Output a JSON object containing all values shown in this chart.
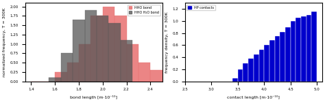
{
  "left": {
    "xlabel": "bond length [m·10⁻¹⁰]",
    "ylabel": "normalized frequency, T = 300K",
    "xlim": [
      1.35,
      2.5
    ],
    "ylim": [
      0,
      2.1
    ],
    "yticks": [
      0.0,
      0.25,
      0.5,
      0.75,
      1.0,
      1.25,
      1.5,
      1.75,
      2.0
    ],
    "xticks": [
      1.4,
      1.6,
      1.8,
      2.0,
      2.2,
      2.4
    ],
    "series1": {
      "label": "HHO bond",
      "color": "#e87070",
      "alpha": 0.85,
      "bin_edges": [
        1.4,
        1.6,
        1.7,
        1.8,
        1.9,
        2.0,
        2.1,
        2.2,
        2.3,
        2.4,
        2.5
      ],
      "heights": [
        0.0,
        0.25,
        0.5,
        1.0,
        1.75,
        2.0,
        1.75,
        1.0,
        0.5,
        0.3
      ]
    },
    "series2": {
      "label": "HHO H₂O bond",
      "color": "#555555",
      "alpha": 0.75,
      "bin_edges": [
        1.55,
        1.65,
        1.75,
        1.85,
        1.95,
        2.05,
        2.15,
        2.25
      ],
      "heights": [
        0.1,
        0.75,
        1.65,
        1.9,
        1.75,
        1.55,
        1.1
      ]
    }
  },
  "right": {
    "xlabel": "contact length [m·10⁻¹⁰]",
    "ylabel": "frequency density, T = 300K",
    "xlim": [
      2.5,
      5.1
    ],
    "ylim": [
      0,
      1.3
    ],
    "yticks": [
      0.0,
      0.2,
      0.4,
      0.6,
      0.8,
      1.0,
      1.2
    ],
    "xticks": [
      2.5,
      3.0,
      3.5,
      4.0,
      4.5,
      5.0
    ],
    "series": {
      "label": "HP contacts",
      "color": "#0000cc",
      "bin_edges": [
        3.4,
        3.5,
        3.6,
        3.7,
        3.8,
        3.9,
        4.0,
        4.1,
        4.2,
        4.3,
        4.4,
        4.5,
        4.6,
        4.7,
        4.8,
        4.9,
        5.0
      ],
      "heights": [
        0.05,
        0.2,
        0.3,
        0.38,
        0.45,
        0.52,
        0.6,
        0.68,
        0.75,
        0.82,
        0.9,
        1.0,
        1.05,
        1.08,
        1.1,
        1.15
      ]
    }
  }
}
